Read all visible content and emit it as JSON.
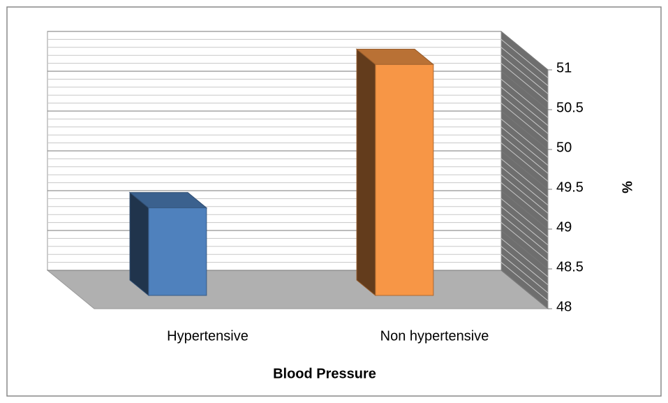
{
  "chart_data": {
    "type": "bar3d",
    "x_label": "Blood Pressure",
    "y_label": "%",
    "categories": [
      "Hypertensive",
      "Non hypertensive"
    ],
    "series": [
      {
        "name": "%",
        "values": [
          49.1,
          50.9
        ]
      }
    ],
    "colors": [
      "#4f81bd",
      "#f79646"
    ],
    "ylim": [
      48,
      51
    ],
    "yticks": [
      48,
      48.5,
      49,
      49.5,
      50,
      50.5,
      51
    ],
    "grid": true
  }
}
